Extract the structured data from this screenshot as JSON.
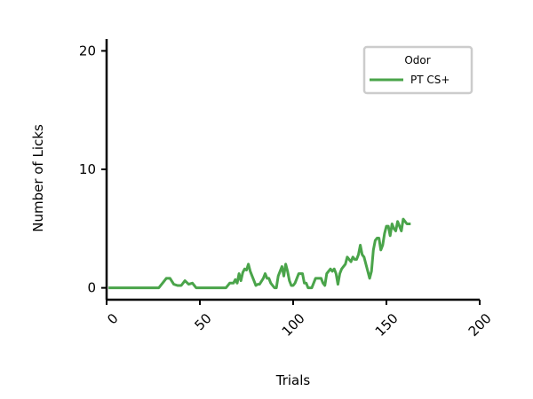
{
  "chart_data": {
    "type": "line",
    "title": "",
    "xlabel": "Trials",
    "ylabel": "Number of Licks",
    "xlim": [
      0,
      200
    ],
    "ylim": [
      -1,
      21
    ],
    "xticks": [
      "0",
      "50",
      "100",
      "150",
      "200"
    ],
    "yticks": [
      "0",
      "10",
      "20"
    ],
    "grid": false,
    "legend": {
      "title": "Odor",
      "placement": "top-right"
    },
    "series": [
      {
        "name": "PT CS+",
        "color": "#4aa44a",
        "x": [
          1,
          28,
          30,
          32,
          34,
          36,
          38,
          40,
          42,
          44,
          46,
          48,
          50,
          55,
          60,
          64,
          66,
          68,
          69,
          70,
          71,
          72,
          73,
          74,
          75,
          76,
          77,
          78,
          79,
          80,
          81,
          82,
          84,
          85,
          86,
          87,
          88,
          89,
          90,
          91,
          92,
          93,
          94,
          95,
          96,
          97,
          98,
          99,
          100,
          101,
          102,
          103,
          104,
          105,
          106,
          107,
          108,
          110,
          112,
          113,
          114,
          115,
          116,
          117,
          118,
          119,
          120,
          121,
          122,
          123,
          124,
          125,
          126,
          127,
          128,
          129,
          130,
          131,
          132,
          133,
          134,
          135,
          136,
          137,
          138,
          139,
          140,
          141,
          142,
          143,
          144,
          145,
          146,
          147,
          148,
          149,
          150,
          151,
          152,
          153,
          154,
          155,
          156,
          157,
          158,
          159,
          160,
          161,
          162,
          163
        ],
        "y": [
          0,
          0,
          0.4,
          0.8,
          0.8,
          0.3,
          0.2,
          0.2,
          0.6,
          0.3,
          0.4,
          0,
          0,
          0,
          0,
          0,
          0.4,
          0.4,
          0.7,
          0.4,
          1.2,
          0.6,
          1.3,
          1.6,
          1.5,
          2.0,
          1.4,
          1.0,
          0.6,
          0.2,
          0.3,
          0.3,
          0.8,
          1.2,
          0.8,
          0.8,
          0.4,
          0.2,
          0,
          0,
          1.0,
          1.4,
          1.8,
          1.0,
          2.0,
          1.4,
          0.6,
          0.2,
          0.2,
          0.4,
          0.8,
          1.2,
          1.2,
          1.2,
          0.4,
          0.4,
          0,
          0,
          0.8,
          0.8,
          0.8,
          0.8,
          0.4,
          0.2,
          1.2,
          1.4,
          1.6,
          1.4,
          1.6,
          1.2,
          0.3,
          1.2,
          1.6,
          1.8,
          2.0,
          2.6,
          2.4,
          2.2,
          2.6,
          2.4,
          2.4,
          2.8,
          3.6,
          2.8,
          2.6,
          2.0,
          1.4,
          0.8,
          1.4,
          3.2,
          4.0,
          4.2,
          4.2,
          3.2,
          3.6,
          4.6,
          5.2,
          5.2,
          4.4,
          5.4,
          5.0,
          4.8,
          5.6,
          5.2,
          4.8,
          5.8,
          5.6,
          5.4,
          5.4,
          5.4
        ]
      }
    ]
  }
}
